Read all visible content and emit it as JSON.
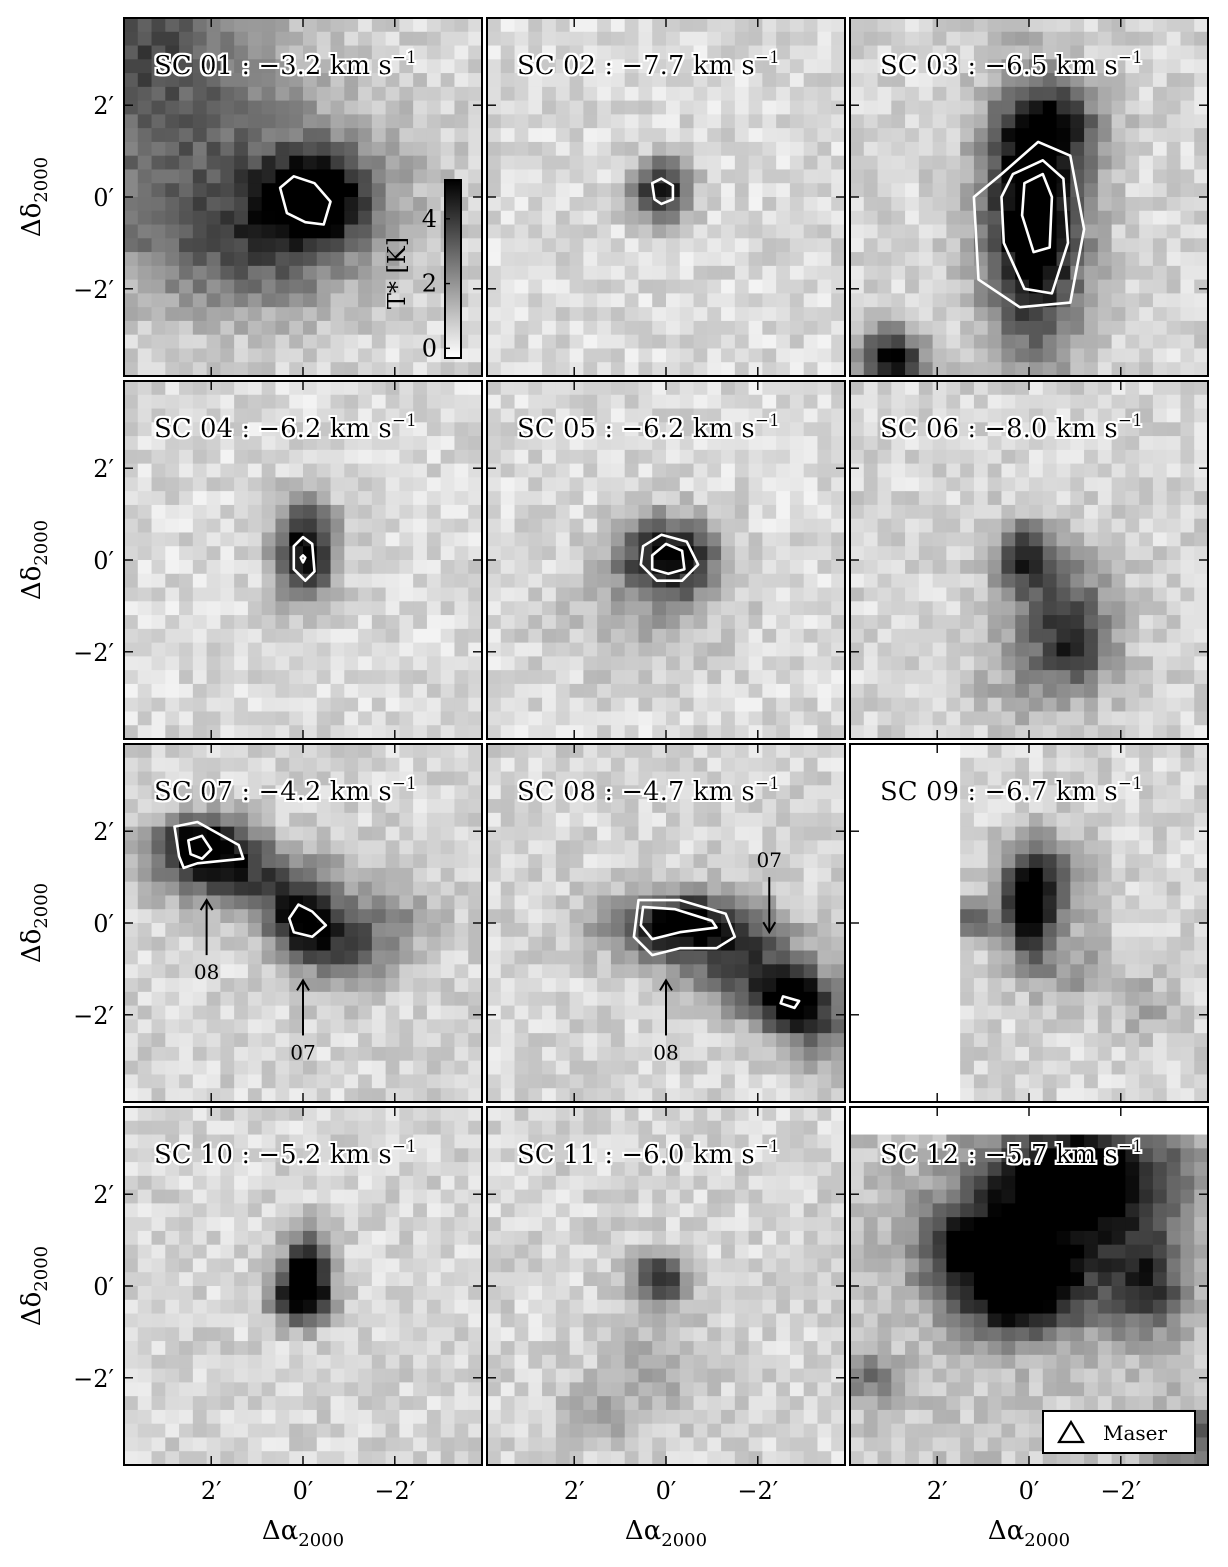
{
  "chart_data": {
    "type": "heatmap",
    "figure_kind": "grid of 12 grayscale intensity maps with contours",
    "x_axis": {
      "label_prefix": "Δα",
      "label_subscript": "2000",
      "ticks": [
        {
          "value": 2,
          "label": "2′"
        },
        {
          "value": 0,
          "label": "0′"
        },
        {
          "value": -2,
          "label": "−2′"
        }
      ],
      "range_arcmin": [
        3.9,
        -3.9
      ]
    },
    "y_axis": {
      "label_prefix": "Δδ",
      "label_subscript": "2000",
      "ticks": [
        {
          "value": 2,
          "label": "2′"
        },
        {
          "value": 0,
          "label": "0′"
        },
        {
          "value": -2,
          "label": "−2′"
        }
      ],
      "range_arcmin": [
        -3.9,
        3.9
      ]
    },
    "colorbar": {
      "label": "T* [K]",
      "ticks": [
        {
          "value": 0,
          "label": "0"
        },
        {
          "value": 2,
          "label": "2"
        },
        {
          "value": 4,
          "label": "4"
        }
      ],
      "range": [
        -0.3,
        5.2
      ],
      "colormap": "gray_r"
    },
    "legend": {
      "entries": [
        {
          "symbol": "triangle",
          "label": "Maser"
        }
      ],
      "position": "bottom-right of panel SC 12"
    },
    "panels": [
      {
        "id": "SC 01",
        "velocity": "−3.2",
        "unit": "km s",
        "unit_exp": "−1",
        "bg": 0.5,
        "blobs": [
          {
            "x": -0.3,
            "y": 0.0,
            "sx": 0.75,
            "sy": 0.65,
            "a": 5.0
          },
          {
            "x": 2.0,
            "y": 0.2,
            "sx": 2.8,
            "sy": 1.6,
            "a": 2.4
          },
          {
            "x": 3.6,
            "y": 3.5,
            "sx": 2.0,
            "sy": 1.4,
            "a": 2.8
          },
          {
            "x": 1.0,
            "y": -1.2,
            "sx": 1.5,
            "sy": 1.0,
            "a": 1.6
          }
        ],
        "contours": [
          [
            [
              0.5,
              0.2
            ],
            [
              0.2,
              0.45
            ],
            [
              -0.25,
              0.3
            ],
            [
              -0.6,
              -0.1
            ],
            [
              -0.45,
              -0.6
            ],
            [
              -0.05,
              -0.55
            ],
            [
              0.35,
              -0.35
            ]
          ]
        ],
        "has_colorbar": true
      },
      {
        "id": "SC 02",
        "velocity": "−7.7",
        "unit": "km s",
        "unit_exp": "−1",
        "bg": 0.5,
        "blobs": [
          {
            "x": 0.1,
            "y": 0.15,
            "sx": 0.45,
            "sy": 0.45,
            "a": 4.4
          }
        ],
        "contours": [
          [
            [
              0.3,
              0.3
            ],
            [
              0.1,
              0.4
            ],
            [
              -0.15,
              0.25
            ],
            [
              -0.15,
              -0.05
            ],
            [
              0.1,
              -0.15
            ],
            [
              0.25,
              -0.05
            ]
          ]
        ]
      },
      {
        "id": "SC 03",
        "velocity": "−6.5",
        "unit": "km s",
        "unit_exp": "−1",
        "bg": 0.6,
        "blobs": [
          {
            "x": -0.1,
            "y": -0.5,
            "sx": 0.75,
            "sy": 1.9,
            "a": 6.0
          },
          {
            "x": 3.0,
            "y": -3.6,
            "sx": 0.5,
            "sy": 0.5,
            "a": 4.5
          },
          {
            "x": -0.6,
            "y": 1.5,
            "sx": 0.8,
            "sy": 0.6,
            "a": 2.5
          }
        ],
        "contours": [
          [
            [
              0.6,
              0.5
            ],
            [
              -0.2,
              1.2
            ],
            [
              -0.9,
              0.9
            ],
            [
              -1.2,
              -0.7
            ],
            [
              -0.9,
              -2.3
            ],
            [
              0.2,
              -2.4
            ],
            [
              1.1,
              -1.8
            ],
            [
              1.2,
              0.0
            ]
          ],
          [
            [
              0.35,
              0.5
            ],
            [
              -0.3,
              0.8
            ],
            [
              -0.75,
              0.4
            ],
            [
              -0.85,
              -1.0
            ],
            [
              -0.5,
              -2.1
            ],
            [
              0.1,
              -2.0
            ],
            [
              0.55,
              -1.0
            ],
            [
              0.6,
              0.0
            ]
          ],
          [
            [
              0.1,
              0.3
            ],
            [
              -0.3,
              0.5
            ],
            [
              -0.5,
              0.0
            ],
            [
              -0.45,
              -1.1
            ],
            [
              -0.1,
              -1.2
            ],
            [
              0.15,
              -0.4
            ]
          ]
        ]
      },
      {
        "id": "SC 04",
        "velocity": "−6.2",
        "unit": "km s",
        "unit_exp": "−1",
        "bg": 0.5,
        "blobs": [
          {
            "x": -0.05,
            "y": 0.2,
            "sx": 0.45,
            "sy": 0.75,
            "a": 4.8
          }
        ],
        "contours": [
          [
            [
              0.2,
              0.3
            ],
            [
              0.0,
              0.5
            ],
            [
              -0.2,
              0.35
            ],
            [
              -0.25,
              -0.25
            ],
            [
              -0.05,
              -0.45
            ],
            [
              0.2,
              -0.2
            ]
          ],
          [
            [
              0.05,
              0.05
            ],
            [
              0.0,
              0.1
            ],
            [
              -0.05,
              0.05
            ],
            [
              0.0,
              -0.05
            ]
          ]
        ]
      },
      {
        "id": "SC 05",
        "velocity": "−6.2",
        "unit": "km s",
        "unit_exp": "−1",
        "bg": 0.5,
        "blobs": [
          {
            "x": -0.05,
            "y": 0.05,
            "sx": 0.75,
            "sy": 0.6,
            "a": 5.0
          },
          {
            "x": 0.5,
            "y": -1.3,
            "sx": 1.4,
            "sy": 0.8,
            "a": 0.8
          }
        ],
        "contours": [
          [
            [
              0.5,
              0.3
            ],
            [
              0.1,
              0.55
            ],
            [
              -0.45,
              0.4
            ],
            [
              -0.7,
              -0.1
            ],
            [
              -0.35,
              -0.45
            ],
            [
              0.2,
              -0.45
            ],
            [
              0.55,
              -0.1
            ]
          ],
          [
            [
              0.3,
              0.1
            ],
            [
              0.0,
              0.35
            ],
            [
              -0.35,
              0.2
            ],
            [
              -0.4,
              -0.2
            ],
            [
              -0.05,
              -0.3
            ],
            [
              0.3,
              -0.2
            ]
          ]
        ]
      },
      {
        "id": "SC 06",
        "velocity": "−8.0",
        "unit": "km s",
        "unit_exp": "−1",
        "bg": 0.6,
        "blobs": [
          {
            "x": 0.1,
            "y": 0.1,
            "sx": 0.45,
            "sy": 0.5,
            "a": 3.6
          },
          {
            "x": -0.7,
            "y": -1.0,
            "sx": 0.8,
            "sy": 0.9,
            "a": 2.5
          },
          {
            "x": -1.1,
            "y": -1.8,
            "sx": 0.5,
            "sy": 0.5,
            "a": 2.0
          },
          {
            "x": -0.3,
            "y": -2.6,
            "sx": 1.0,
            "sy": 0.7,
            "a": 1.3
          }
        ],
        "contours": []
      },
      {
        "id": "SC 07",
        "velocity": "−4.2",
        "unit": "km s",
        "unit_exp": "−1",
        "bg": 0.6,
        "blobs": [
          {
            "x": 2.2,
            "y": 1.7,
            "sx": 0.7,
            "sy": 0.45,
            "a": 5.0
          },
          {
            "x": 0.0,
            "y": 0.05,
            "sx": 0.55,
            "sy": 0.5,
            "a": 4.6
          },
          {
            "x": 1.2,
            "y": 1.0,
            "sx": 1.2,
            "sy": 0.5,
            "a": 3.0
          },
          {
            "x": -0.9,
            "y": -0.6,
            "sx": 0.7,
            "sy": 0.6,
            "a": 2.5
          },
          {
            "x": -2.0,
            "y": 0.1,
            "sx": 0.8,
            "sy": 0.6,
            "a": 1.2
          }
        ],
        "contours": [
          [
            [
              2.8,
              2.1
            ],
            [
              2.3,
              2.2
            ],
            [
              1.4,
              1.7
            ],
            [
              1.3,
              1.4
            ],
            [
              2.3,
              1.3
            ],
            [
              2.6,
              1.2
            ],
            [
              2.7,
              1.45
            ]
          ],
          [
            [
              2.5,
              1.8
            ],
            [
              2.2,
              1.9
            ],
            [
              2.0,
              1.6
            ],
            [
              2.2,
              1.4
            ],
            [
              2.45,
              1.5
            ]
          ],
          [
            [
              0.1,
              0.4
            ],
            [
              -0.2,
              0.25
            ],
            [
              -0.5,
              -0.05
            ],
            [
              -0.2,
              -0.3
            ],
            [
              0.2,
              -0.2
            ],
            [
              0.3,
              0.1
            ]
          ]
        ],
        "annotations": [
          {
            "label": "08",
            "arrow_from": [
              2.1,
              -0.7
            ],
            "arrow_to": [
              2.1,
              0.5
            ]
          },
          {
            "label": "07",
            "arrow_from": [
              0.0,
              -2.45
            ],
            "arrow_to": [
              0.0,
              -1.25
            ]
          }
        ]
      },
      {
        "id": "SC 08",
        "velocity": "−4.7",
        "unit": "km s",
        "unit_exp": "−1",
        "bg": 0.6,
        "blobs": [
          {
            "x": -0.4,
            "y": -0.05,
            "sx": 1.1,
            "sy": 0.5,
            "a": 5.0
          },
          {
            "x": -2.7,
            "y": -1.7,
            "sx": 0.6,
            "sy": 0.45,
            "a": 4.5
          },
          {
            "x": -1.8,
            "y": -1.0,
            "sx": 1.0,
            "sy": 0.6,
            "a": 2.6
          },
          {
            "x": -3.4,
            "y": -2.4,
            "sx": 0.6,
            "sy": 0.6,
            "a": 2.0
          }
        ],
        "contours": [
          [
            [
              0.6,
              0.5
            ],
            [
              -0.3,
              0.5
            ],
            [
              -1.3,
              0.2
            ],
            [
              -1.5,
              -0.3
            ],
            [
              -1.1,
              -0.55
            ],
            [
              -0.3,
              -0.55
            ],
            [
              0.3,
              -0.7
            ],
            [
              0.7,
              -0.3
            ]
          ],
          [
            [
              0.5,
              0.35
            ],
            [
              -0.2,
              0.3
            ],
            [
              -1.0,
              0.05
            ],
            [
              -1.1,
              -0.1
            ],
            [
              -0.3,
              -0.2
            ],
            [
              0.3,
              -0.35
            ],
            [
              0.55,
              -0.05
            ]
          ],
          [
            [
              -2.55,
              -1.6
            ],
            [
              -2.9,
              -1.7
            ],
            [
              -2.8,
              -1.85
            ],
            [
              -2.5,
              -1.75
            ]
          ]
        ],
        "annotations": [
          {
            "label": "08",
            "arrow_from": [
              0.0,
              -2.45
            ],
            "arrow_to": [
              0.0,
              -1.25
            ]
          },
          {
            "label": "07",
            "arrow_from": [
              -2.25,
              1.0
            ],
            "arrow_to": [
              -2.25,
              -0.2
            ]
          }
        ]
      },
      {
        "id": "SC 09",
        "velocity": "−6.7",
        "unit": "km s",
        "unit_exp": "−1",
        "bg": 0.6,
        "blobs": [
          {
            "x": 0.0,
            "y": 0.3,
            "sx": 0.35,
            "sy": 0.8,
            "a": 5.0
          },
          {
            "x": -0.4,
            "y": 0.9,
            "sx": 0.7,
            "sy": 0.7,
            "a": 2.2
          },
          {
            "x": 1.2,
            "y": 0.0,
            "sx": 0.3,
            "sy": 0.3,
            "a": 3.0
          },
          {
            "x": -1.0,
            "y": -1.0,
            "sx": 0.7,
            "sy": 0.5,
            "a": 1.3
          },
          {
            "x": -2.5,
            "y": -1.8,
            "sx": 0.4,
            "sy": 0.4,
            "a": 1.3
          }
        ],
        "blank_left_of_arcmin": 1.4,
        "contours": []
      },
      {
        "id": "SC 10",
        "velocity": "−5.2",
        "unit": "km s",
        "unit_exp": "−1",
        "bg": 0.6,
        "blobs": [
          {
            "x": -0.1,
            "y": 0.3,
            "sx": 0.35,
            "sy": 0.6,
            "a": 4.6
          },
          {
            "x": 0.1,
            "y": -0.2,
            "sx": 0.45,
            "sy": 0.4,
            "a": 3.6
          }
        ],
        "contours": []
      },
      {
        "id": "SC 11",
        "velocity": "−6.0",
        "unit": "km s",
        "unit_exp": "−1",
        "bg": 0.6,
        "blobs": [
          {
            "x": 0.1,
            "y": 0.15,
            "sx": 0.4,
            "sy": 0.4,
            "a": 4.0
          },
          {
            "x": 0.2,
            "y": -1.8,
            "sx": 0.8,
            "sy": 0.8,
            "a": 0.9
          },
          {
            "x": 1.5,
            "y": -2.8,
            "sx": 0.6,
            "sy": 0.5,
            "a": 1.0
          }
        ],
        "contours": []
      },
      {
        "id": "SC 12",
        "velocity": "−5.7",
        "unit": "km s",
        "unit_exp": "−1",
        "bg": 0.9,
        "blobs": [
          {
            "x": 0.2,
            "y": -0.2,
            "sx": 1.0,
            "sy": 0.7,
            "a": 4.5
          },
          {
            "x": -1.3,
            "y": 2.5,
            "sx": 1.4,
            "sy": 0.8,
            "a": 4.5
          },
          {
            "x": -0.2,
            "y": 1.2,
            "sx": 1.6,
            "sy": 1.0,
            "a": 3.5
          },
          {
            "x": -2.6,
            "y": 0.0,
            "sx": 0.6,
            "sy": 0.8,
            "a": 3.0
          },
          {
            "x": -3.6,
            "y": -3.4,
            "sx": 0.6,
            "sy": 0.5,
            "a": 2.5
          },
          {
            "x": 3.5,
            "y": -2.0,
            "sx": 0.4,
            "sy": 0.4,
            "a": 2.0
          },
          {
            "x": 1.5,
            "y": 0.8,
            "sx": 0.6,
            "sy": 0.5,
            "a": 2.2
          }
        ],
        "blank_top_above_arcmin": 3.2,
        "has_legend": true,
        "contours": []
      }
    ]
  }
}
